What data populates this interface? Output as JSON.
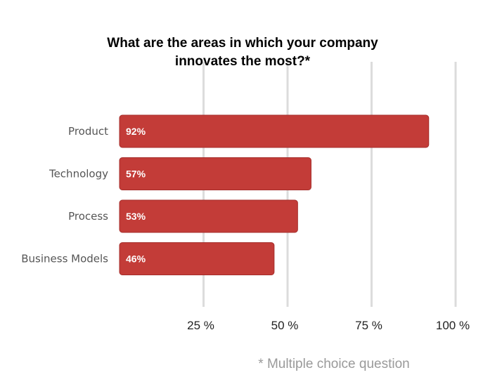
{
  "chart_data": {
    "type": "bar",
    "orientation": "horizontal",
    "title_lines": [
      "What are the areas in which your company",
      "innovates the most?*"
    ],
    "categories": [
      "Product",
      "Technology",
      "Process",
      "Business Models"
    ],
    "values": [
      92,
      57,
      53,
      46
    ],
    "data_labels": [
      "92%",
      "57%",
      "53%",
      "46%"
    ],
    "xlim": [
      0,
      100
    ],
    "x_ticks": [
      25,
      50,
      75,
      100
    ],
    "x_tick_labels": [
      "25 %",
      "50 %",
      "75 %",
      "100 %"
    ],
    "grid": true,
    "footnote": "* Multiple choice question"
  },
  "colors": {
    "bar": "#c33c38",
    "bar_edge": "#a52e2b",
    "grid": "#dcdcdc"
  }
}
